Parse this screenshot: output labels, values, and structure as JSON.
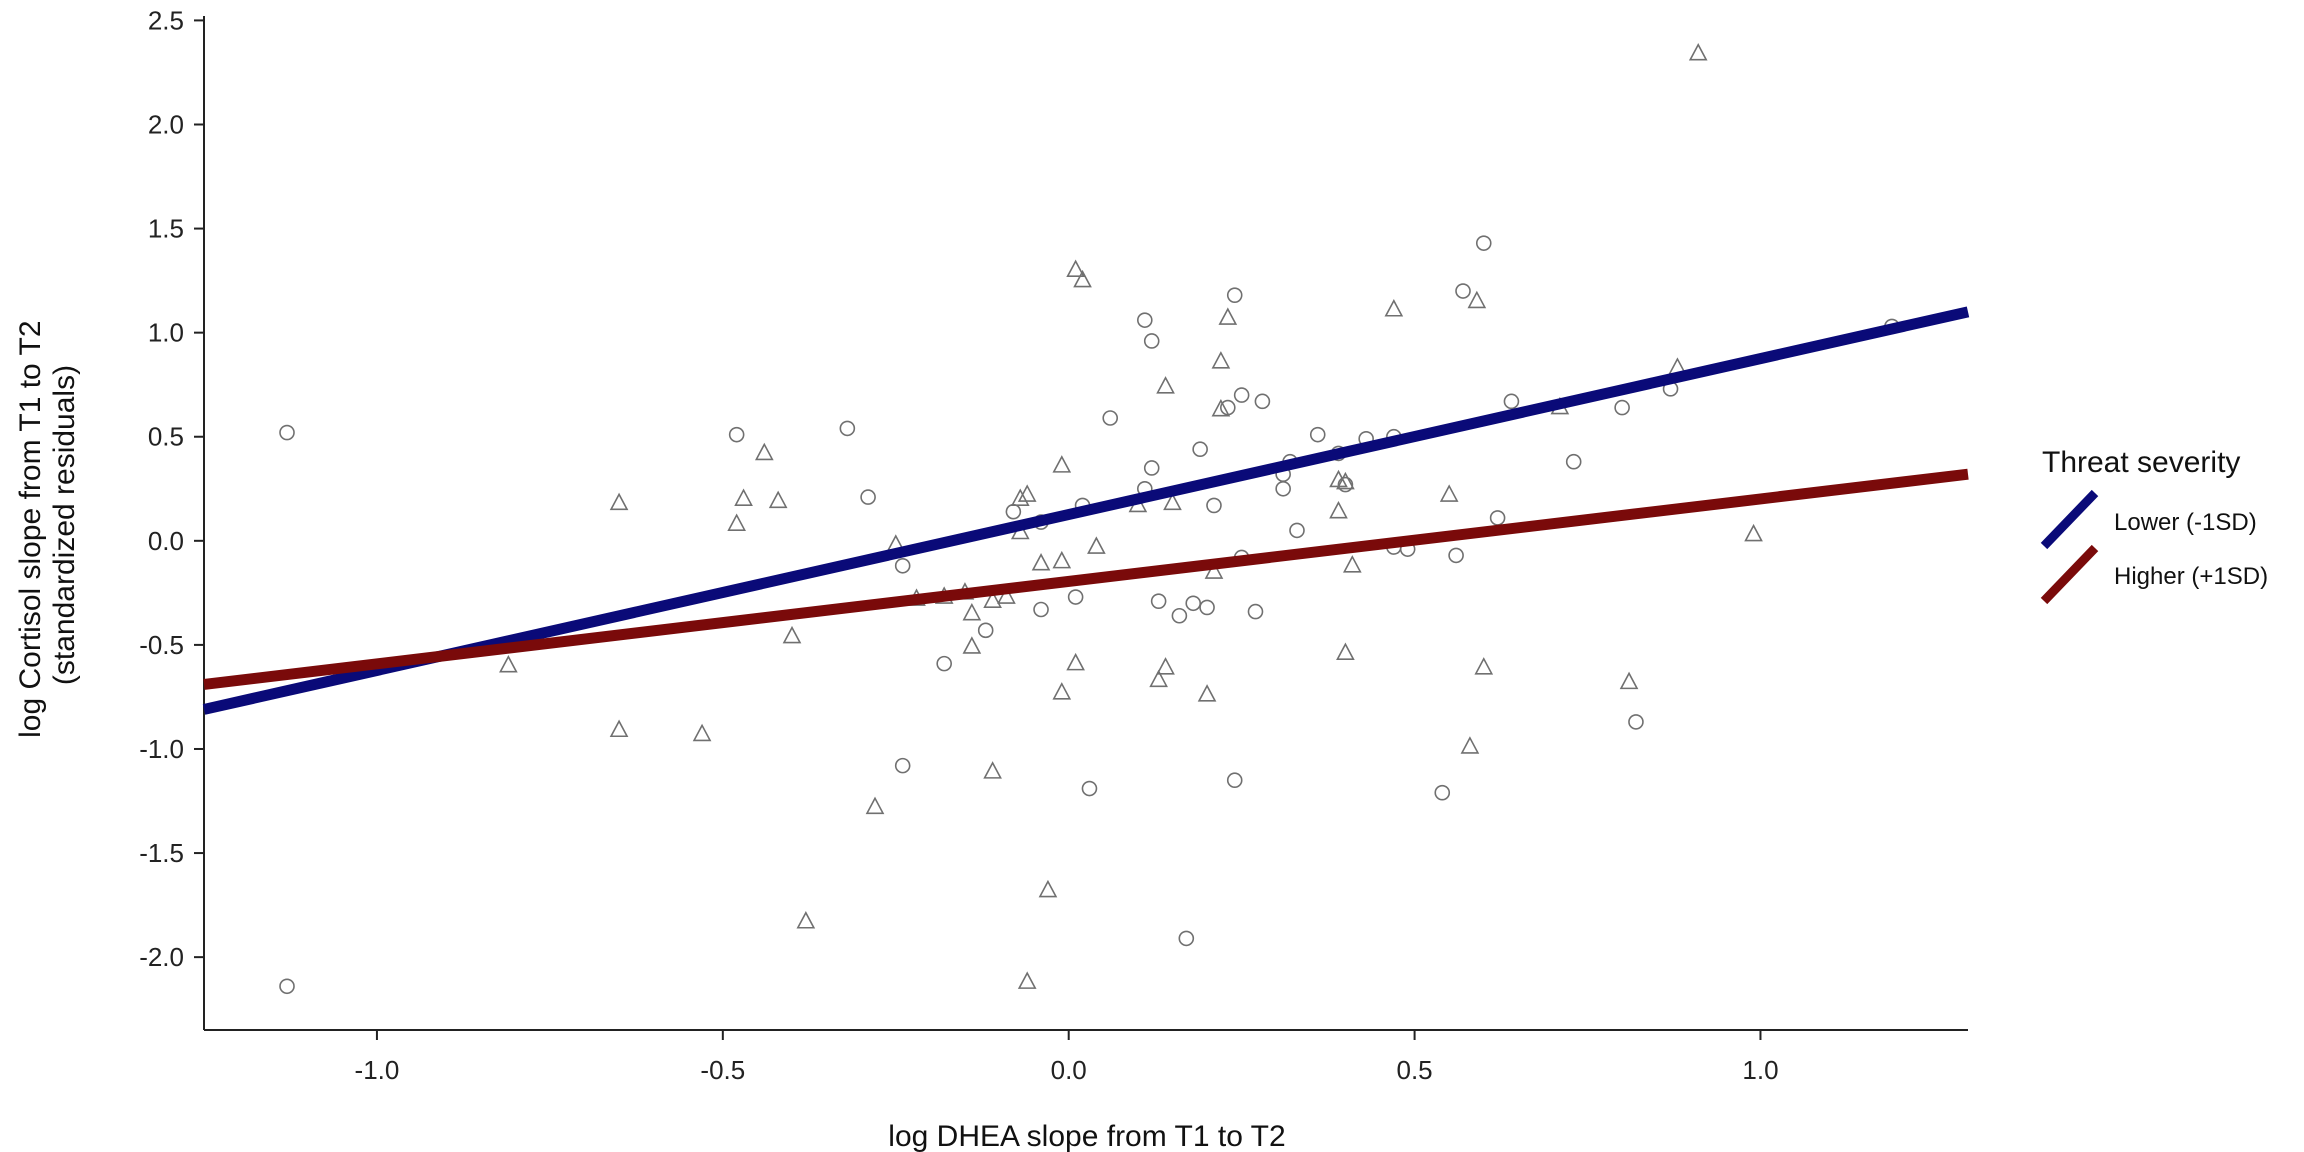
{
  "chart_data": {
    "type": "scatter",
    "xlabel": "log DHEA slope from T1 to T2",
    "ylabel": [
      "log Cortisol slope from T1 to T2",
      "(standardized residuals)"
    ],
    "xlim": [
      -1.25,
      1.3
    ],
    "ylim": [
      -2.35,
      2.55
    ],
    "x_ticks": [
      -1.0,
      -0.5,
      0.0,
      0.5,
      1.0
    ],
    "x_tick_labels": [
      "-1.0",
      "-0.5",
      "0.0",
      "0.5",
      "1.0"
    ],
    "y_ticks": [
      2.5,
      2.0,
      1.5,
      1.0,
      0.5,
      0.0,
      -0.5,
      -1.0,
      -1.5,
      -2.0
    ],
    "y_tick_labels": [
      "2.5",
      "2.0",
      "1.5",
      "1.0",
      "0.5",
      "0.0",
      "-0.5",
      "-1.0",
      "-1.5",
      "-2.0"
    ],
    "grid": false,
    "legend": {
      "title": "Threat severity",
      "placement": "right",
      "entries": [
        "Lower (-1SD)",
        "Higher (+1SD)"
      ]
    },
    "lines": [
      {
        "name": "Lower (-1SD)",
        "color": "#0a0a78",
        "x": [
          -1.25,
          1.3
        ],
        "y": [
          -0.81,
          1.1
        ]
      },
      {
        "name": "Higher (+1SD)",
        "color": "#7a0a0a",
        "x": [
          -1.25,
          1.3
        ],
        "y": [
          -0.69,
          0.32
        ]
      }
    ],
    "point_style": {
      "color": "#707070"
    },
    "series": [
      {
        "marker": "circle",
        "points": [
          [
            -1.13,
            0.52
          ],
          [
            -1.13,
            -2.14
          ],
          [
            -0.48,
            0.51
          ],
          [
            -0.32,
            0.54
          ],
          [
            -0.29,
            0.21
          ],
          [
            -0.24,
            -0.12
          ],
          [
            -0.24,
            -1.08
          ],
          [
            -0.18,
            -0.59
          ],
          [
            -0.12,
            -0.43
          ],
          [
            -0.08,
            0.14
          ],
          [
            -0.04,
            -0.33
          ],
          [
            -0.04,
            0.09
          ],
          [
            0.01,
            -0.27
          ],
          [
            0.02,
            0.17
          ],
          [
            0.03,
            -1.19
          ],
          [
            0.06,
            0.59
          ],
          [
            0.11,
            1.06
          ],
          [
            0.11,
            0.25
          ],
          [
            0.12,
            0.35
          ],
          [
            0.12,
            0.96
          ],
          [
            0.13,
            -0.29
          ],
          [
            0.16,
            -0.36
          ],
          [
            0.17,
            -1.91
          ],
          [
            0.18,
            -0.3
          ],
          [
            0.19,
            0.44
          ],
          [
            0.2,
            -0.32
          ],
          [
            0.21,
            0.17
          ],
          [
            0.23,
            0.64
          ],
          [
            0.24,
            1.18
          ],
          [
            0.24,
            -1.15
          ],
          [
            0.25,
            0.7
          ],
          [
            0.25,
            -0.08
          ],
          [
            0.27,
            -0.34
          ],
          [
            0.28,
            0.67
          ],
          [
            0.31,
            0.25
          ],
          [
            0.31,
            0.32
          ],
          [
            0.32,
            0.38
          ],
          [
            0.33,
            0.05
          ],
          [
            0.36,
            0.51
          ],
          [
            0.39,
            0.42
          ],
          [
            0.4,
            0.27
          ],
          [
            0.43,
            0.49
          ],
          [
            0.47,
            -0.03
          ],
          [
            0.47,
            0.5
          ],
          [
            0.49,
            -0.04
          ],
          [
            0.54,
            -1.21
          ],
          [
            0.56,
            -0.07
          ],
          [
            0.57,
            1.2
          ],
          [
            0.6,
            1.43
          ],
          [
            0.62,
            0.11
          ],
          [
            0.64,
            0.67
          ],
          [
            0.73,
            0.38
          ],
          [
            0.8,
            0.64
          ],
          [
            0.82,
            -0.87
          ],
          [
            0.87,
            0.73
          ],
          [
            1.19,
            1.03
          ]
        ]
      },
      {
        "marker": "triangle",
        "points": [
          [
            -0.65,
            0.18
          ],
          [
            -0.81,
            -0.6
          ],
          [
            -0.65,
            -0.91
          ],
          [
            -0.53,
            -0.93
          ],
          [
            -0.48,
            0.08
          ],
          [
            -0.47,
            0.2
          ],
          [
            -0.44,
            0.42
          ],
          [
            -0.42,
            0.19
          ],
          [
            -0.4,
            -0.46
          ],
          [
            -0.38,
            -1.83
          ],
          [
            -0.28,
            -1.28
          ],
          [
            -0.25,
            -0.02
          ],
          [
            -0.22,
            -0.28
          ],
          [
            -0.18,
            -0.27
          ],
          [
            -0.15,
            -0.25
          ],
          [
            -0.14,
            -0.35
          ],
          [
            -0.14,
            -0.51
          ],
          [
            -0.11,
            -1.11
          ],
          [
            -0.11,
            -0.29
          ],
          [
            -0.09,
            -0.27
          ],
          [
            -0.07,
            0.04
          ],
          [
            -0.07,
            0.2
          ],
          [
            -0.06,
            0.22
          ],
          [
            -0.06,
            -2.12
          ],
          [
            -0.04,
            -0.11
          ],
          [
            -0.03,
            -1.68
          ],
          [
            -0.01,
            0.36
          ],
          [
            -0.01,
            -0.1
          ],
          [
            -0.01,
            -0.73
          ],
          [
            0.01,
            -0.59
          ],
          [
            0.01,
            1.3
          ],
          [
            0.02,
            1.25
          ],
          [
            0.04,
            -0.03
          ],
          [
            0.1,
            0.17
          ],
          [
            0.13,
            -0.67
          ],
          [
            0.14,
            -0.61
          ],
          [
            0.14,
            0.74
          ],
          [
            0.15,
            0.18
          ],
          [
            0.2,
            -0.74
          ],
          [
            0.21,
            -0.15
          ],
          [
            0.22,
            0.86
          ],
          [
            0.22,
            0.63
          ],
          [
            0.23,
            1.07
          ],
          [
            0.39,
            0.14
          ],
          [
            0.39,
            0.29
          ],
          [
            0.4,
            0.28
          ],
          [
            0.4,
            -0.54
          ],
          [
            0.41,
            -0.12
          ],
          [
            0.47,
            1.11
          ],
          [
            0.55,
            0.22
          ],
          [
            0.58,
            -0.99
          ],
          [
            0.59,
            1.15
          ],
          [
            0.6,
            -0.61
          ],
          [
            0.71,
            0.64
          ],
          [
            0.81,
            -0.68
          ],
          [
            0.88,
            0.83
          ],
          [
            0.91,
            2.34
          ],
          [
            0.99,
            0.03
          ]
        ]
      }
    ]
  }
}
